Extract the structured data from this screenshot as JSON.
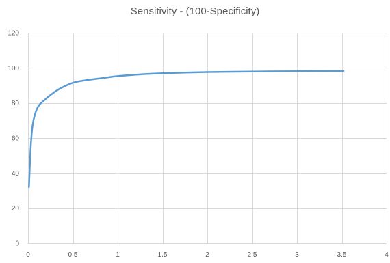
{
  "chart_data": {
    "type": "line",
    "title": "Sensitivity - (100-Specificity)",
    "xlabel": "",
    "ylabel": "",
    "xlim": [
      0,
      4
    ],
    "ylim": [
      0,
      120
    ],
    "x_ticks": [
      "0",
      "0.5",
      "1",
      "1.5",
      "2",
      "2.5",
      "3",
      "3.5",
      "4"
    ],
    "y_ticks": [
      "0",
      "20",
      "40",
      "60",
      "80",
      "100",
      "120"
    ],
    "grid": true,
    "legend": "none",
    "series": [
      {
        "color": "#5b9bd5",
        "x": [
          0.01,
          0.03,
          0.05,
          0.08,
          0.12,
          0.18,
          0.25,
          0.35,
          0.5,
          0.65,
          0.8,
          1.0,
          1.25,
          1.5,
          2.0,
          2.5,
          3.0,
          3.52
        ],
        "y": [
          32,
          55,
          67,
          74,
          78.5,
          81.5,
          84.5,
          88,
          91.5,
          93,
          94,
          95.3,
          96.3,
          96.9,
          97.6,
          97.9,
          98.1,
          98.3
        ]
      }
    ]
  }
}
